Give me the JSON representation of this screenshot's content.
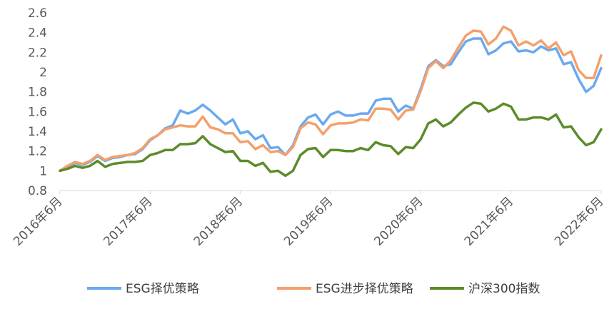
{
  "chart_data": {
    "type": "line",
    "title": "",
    "xlabel": "",
    "ylabel": "",
    "ylim": [
      0.8,
      2.6
    ],
    "yticks": [
      "0.8",
      "1",
      "1.2",
      "1.4",
      "1.6",
      "1.8",
      "2",
      "2.2",
      "2.4",
      "2.6"
    ],
    "xticks": [
      "2016年6月",
      "2017年6月",
      "2018年6月",
      "2019年6月",
      "2020年6月",
      "2021年6月",
      "2022年6月"
    ],
    "grid": "none",
    "legend_position": "bottom",
    "x_start": "2016年6月",
    "x_end": "2022年6月",
    "series": [
      {
        "name": "ESG择优策略",
        "color": "#6aa9f0",
        "values": [
          1.0,
          1.04,
          1.08,
          1.06,
          1.09,
          1.15,
          1.1,
          1.13,
          1.14,
          1.16,
          1.17,
          1.22,
          1.31,
          1.36,
          1.43,
          1.46,
          1.61,
          1.58,
          1.61,
          1.67,
          1.61,
          1.54,
          1.47,
          1.52,
          1.38,
          1.4,
          1.32,
          1.36,
          1.23,
          1.24,
          1.16,
          1.26,
          1.45,
          1.54,
          1.57,
          1.47,
          1.57,
          1.6,
          1.56,
          1.56,
          1.58,
          1.58,
          1.71,
          1.73,
          1.73,
          1.6,
          1.66,
          1.63,
          1.83,
          2.06,
          2.12,
          2.06,
          2.08,
          2.2,
          2.31,
          2.34,
          2.34,
          2.18,
          2.22,
          2.29,
          2.31,
          2.21,
          2.22,
          2.2,
          2.26,
          2.22,
          2.24,
          2.08,
          2.1,
          1.93,
          1.8,
          1.86,
          2.04
        ]
      },
      {
        "name": "ESG进步择优策略",
        "color": "#f4a06c",
        "values": [
          1.0,
          1.05,
          1.09,
          1.07,
          1.1,
          1.16,
          1.11,
          1.14,
          1.15,
          1.16,
          1.18,
          1.23,
          1.32,
          1.36,
          1.42,
          1.44,
          1.46,
          1.45,
          1.45,
          1.55,
          1.44,
          1.42,
          1.38,
          1.38,
          1.29,
          1.3,
          1.22,
          1.26,
          1.19,
          1.2,
          1.16,
          1.24,
          1.43,
          1.49,
          1.47,
          1.37,
          1.46,
          1.48,
          1.48,
          1.49,
          1.52,
          1.51,
          1.63,
          1.63,
          1.62,
          1.52,
          1.61,
          1.62,
          1.81,
          2.04,
          2.11,
          2.04,
          2.12,
          2.25,
          2.37,
          2.42,
          2.41,
          2.28,
          2.34,
          2.46,
          2.42,
          2.27,
          2.31,
          2.27,
          2.32,
          2.24,
          2.3,
          2.17,
          2.21,
          2.02,
          1.94,
          1.94,
          2.17
        ]
      },
      {
        "name": "沪深300指数",
        "color": "#5b8c2a",
        "values": [
          1.0,
          1.02,
          1.05,
          1.03,
          1.05,
          1.1,
          1.04,
          1.07,
          1.08,
          1.09,
          1.09,
          1.1,
          1.16,
          1.18,
          1.21,
          1.21,
          1.27,
          1.27,
          1.28,
          1.35,
          1.27,
          1.23,
          1.19,
          1.2,
          1.1,
          1.1,
          1.05,
          1.08,
          0.99,
          1.0,
          0.95,
          1.0,
          1.16,
          1.22,
          1.23,
          1.14,
          1.21,
          1.21,
          1.2,
          1.2,
          1.23,
          1.21,
          1.29,
          1.26,
          1.25,
          1.17,
          1.24,
          1.23,
          1.32,
          1.48,
          1.52,
          1.45,
          1.49,
          1.57,
          1.64,
          1.69,
          1.68,
          1.6,
          1.63,
          1.68,
          1.65,
          1.52,
          1.52,
          1.54,
          1.54,
          1.52,
          1.57,
          1.44,
          1.45,
          1.34,
          1.26,
          1.29,
          1.42
        ]
      }
    ]
  }
}
